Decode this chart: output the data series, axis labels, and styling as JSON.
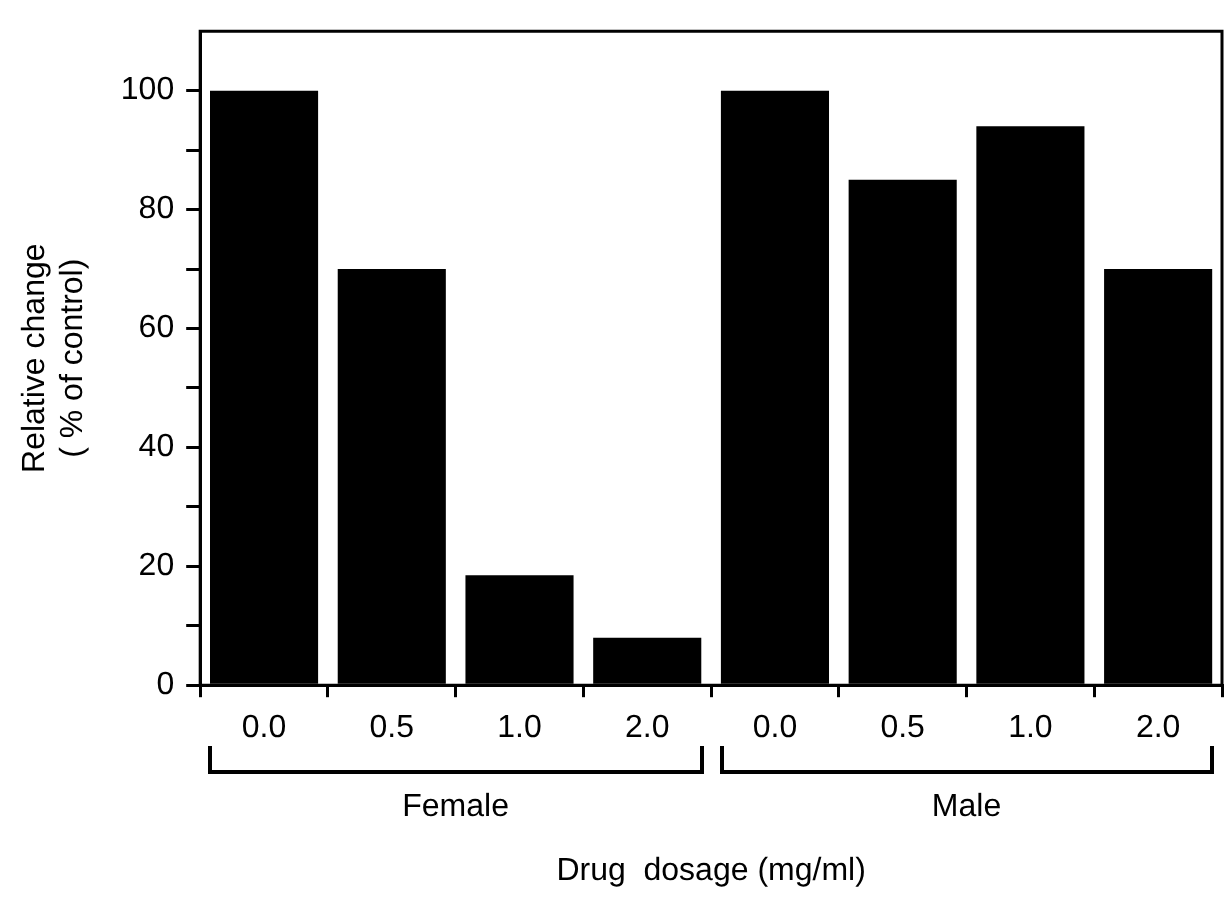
{
  "chart_data": {
    "type": "bar",
    "xlabel": "Drug  dosage (mg/ml)",
    "ylabel": "Relative change\n( % of control)",
    "categories": [
      "0.0",
      "0.5",
      "1.0",
      "2.0",
      "0.0",
      "0.5",
      "1.0",
      "2.0"
    ],
    "values": [
      100,
      70,
      18.5,
      8,
      100,
      85,
      94,
      70
    ],
    "color": "#000000",
    "ylim": [
      0,
      110
    ],
    "yticks": [
      0,
      {
        "value": 10,
        "label": null
      },
      20,
      {
        "value": 30,
        "label": null
      },
      40,
      {
        "value": 50,
        "label": null
      },
      60,
      {
        "value": 70,
        "label": null
      },
      80,
      {
        "value": 90,
        "label": null
      },
      100
    ],
    "annotations": [
      "Female",
      "Male"
    ],
    "grid": false,
    "legend": false
  }
}
